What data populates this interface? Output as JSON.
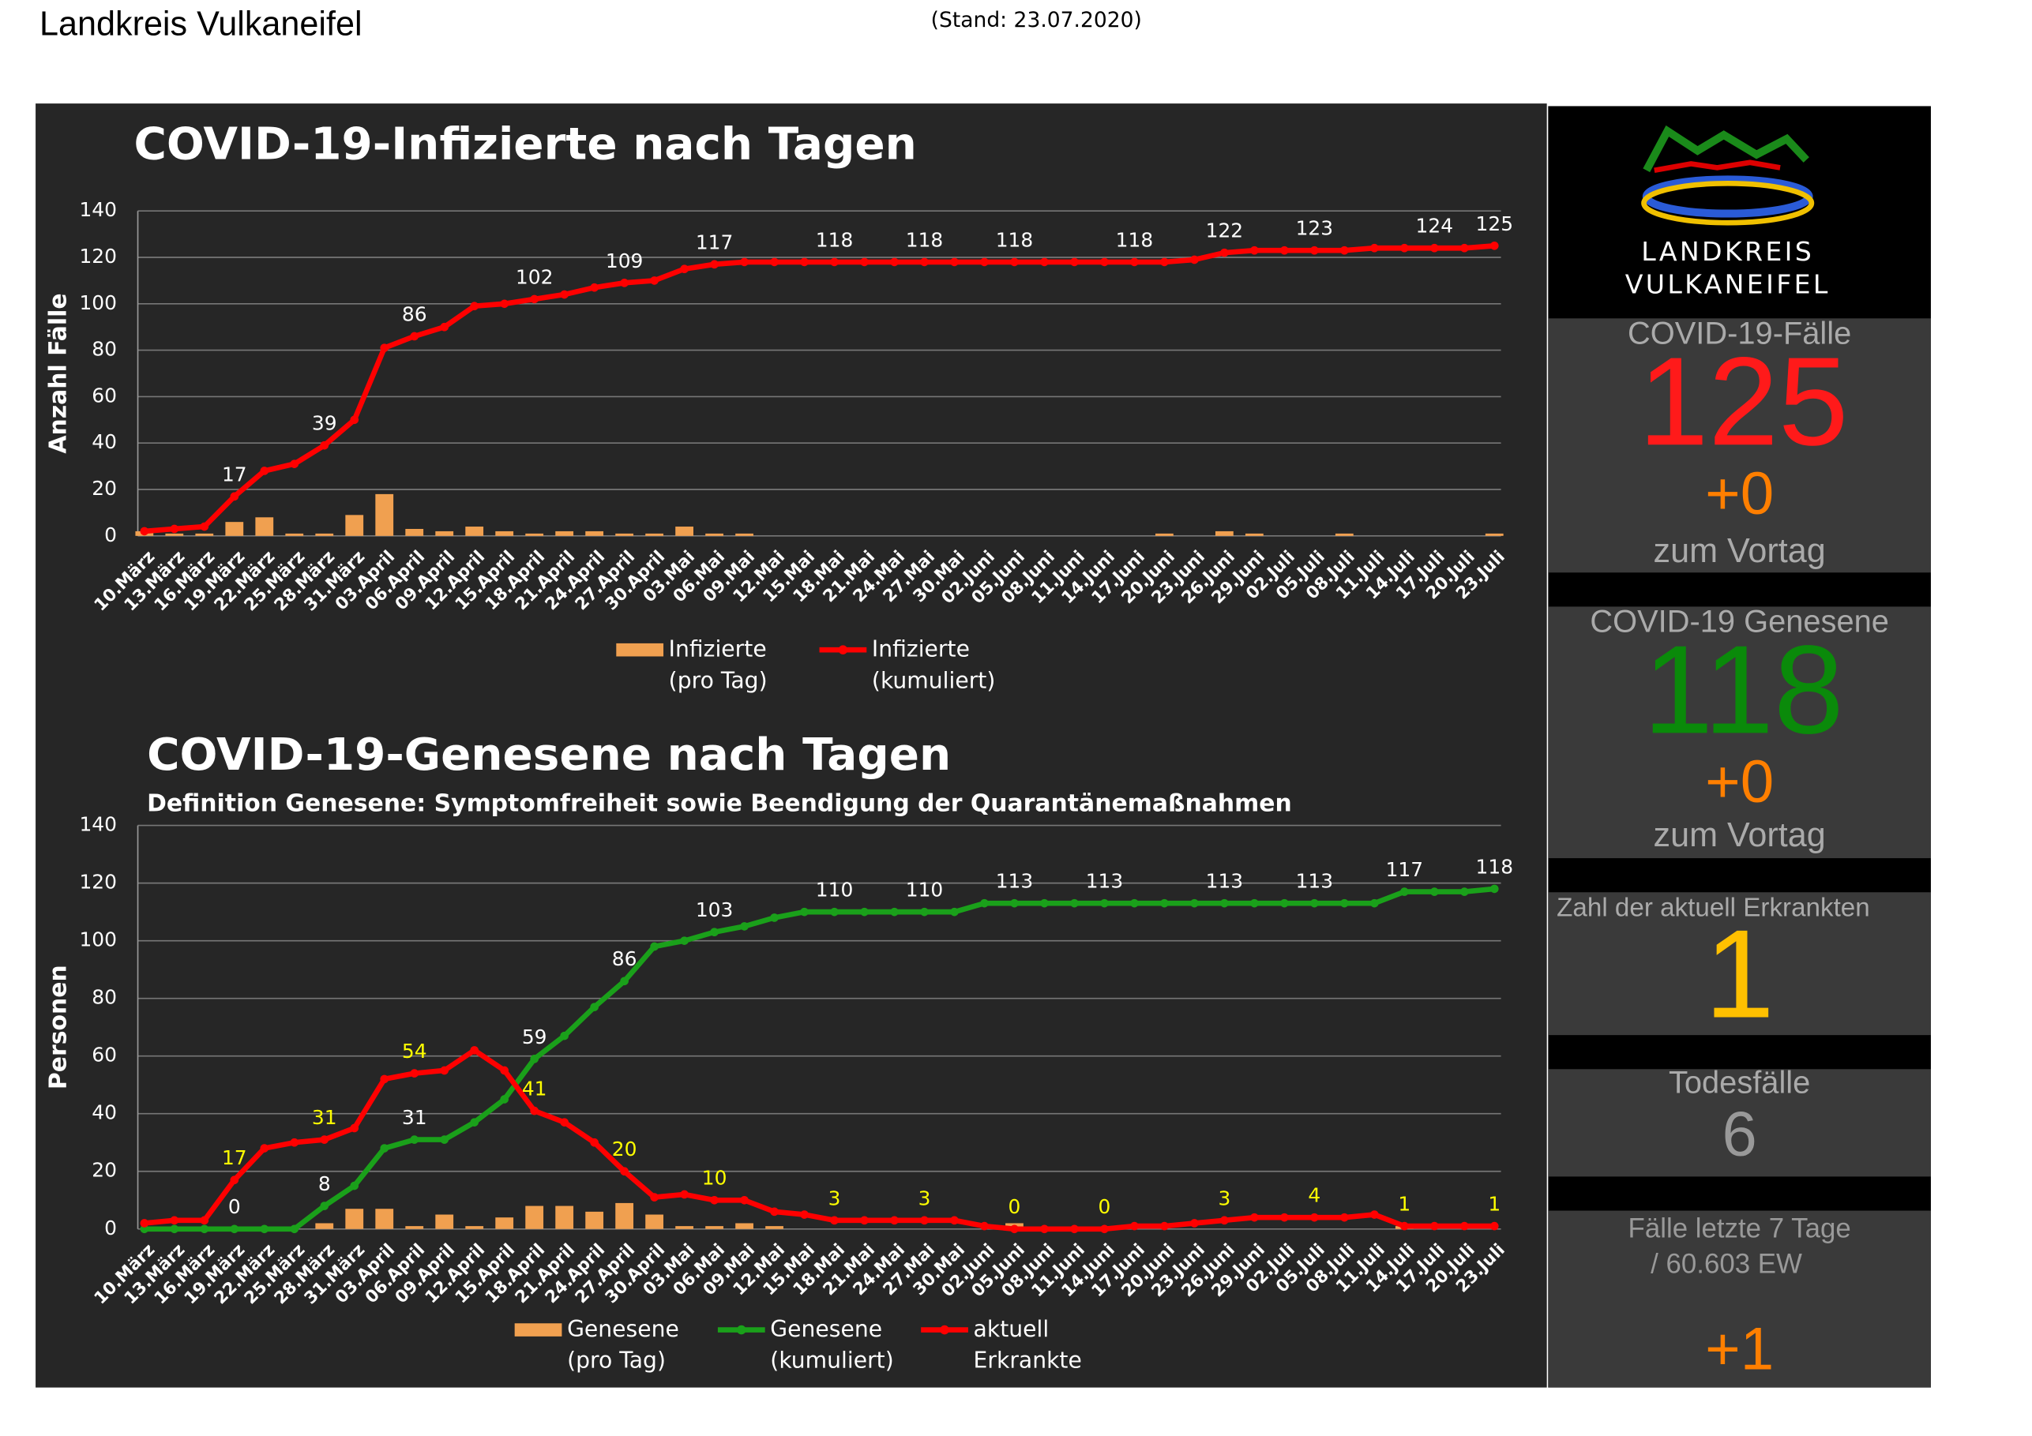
{
  "header": {
    "title": "Landkreis Vulkaneifel",
    "date": "(Stand: 23.07.2020)"
  },
  "panel": {
    "logo_lines": [
      "LANDKREIS",
      "VULKANEIFEL"
    ],
    "cases_label": "COVID-19-Fälle",
    "cases": "125",
    "cases_delta": "+0",
    "cases_delta_note": "zum Vortag",
    "recovered_label": "COVID-19 Genesene",
    "recovered": "118",
    "recovered_delta": "+0",
    "recovered_delta_note": "zum Vortag",
    "active_label": "Zahl der aktuell Erkrankten",
    "active": "1",
    "deaths_label": "Todesfälle",
    "deaths": "6",
    "week_label": "Fälle letzte 7 Tage",
    "week_population": "/  60.603 EW",
    "week": "+1"
  },
  "chart_data": [
    {
      "type": "line",
      "title": "COVID-19-Infizierte nach Tagen",
      "y_label": "Anzahl Fälle",
      "categories": [
        "10.März",
        "13.März",
        "16.März",
        "19.März",
        "22.März",
        "25.März",
        "28.März",
        "31.März",
        "03.April",
        "06.April",
        "09.April",
        "12.April",
        "15.April",
        "18.April",
        "21.April",
        "24.April",
        "27.April",
        "30.April",
        "03.Mai",
        "06.Mai",
        "09.Mai",
        "12.Mai",
        "15.Mai",
        "18.Mai",
        "21.Mai",
        "24.Mai",
        "27.Mai",
        "30.Mai",
        "02.Juni",
        "05.Juni",
        "08.Juni",
        "11.Juni",
        "14.Juni",
        "17.Juni",
        "20.Juni",
        "23.Juni",
        "26.Juni",
        "29.Juni",
        "02.Juli",
        "05.Juli",
        "08.Juli",
        "11.Juli",
        "14.Juli",
        "17.Juli",
        "20.Juli",
        "23.Juli"
      ],
      "series": [
        {
          "name": "Infizierte (pro Tag)",
          "type": "bar",
          "color": "#f0a050",
          "values": [
            2,
            1,
            1,
            6,
            8,
            1,
            1,
            9,
            18,
            3,
            2,
            4,
            2,
            1,
            2,
            2,
            1,
            1,
            4,
            1,
            1,
            0,
            0,
            0,
            0,
            0,
            0,
            0,
            0,
            0,
            0,
            0,
            0,
            0,
            1,
            0,
            2,
            1,
            0,
            0,
            1,
            0,
            0,
            0,
            0,
            1
          ]
        },
        {
          "name": "Infizierte (kumuliert)",
          "type": "line",
          "color": "#ff0000",
          "label_color": "#ffffff",
          "values": [
            2,
            3,
            4,
            17,
            28,
            31,
            39,
            50,
            81,
            86,
            90,
            99,
            100,
            102,
            104,
            107,
            109,
            110,
            115,
            117,
            118,
            118,
            118,
            118,
            118,
            118,
            118,
            118,
            118,
            118,
            118,
            118,
            118,
            118,
            118,
            119,
            122,
            123,
            123,
            123,
            123,
            124,
            124,
            124,
            124,
            125
          ],
          "value_labels": [
            null,
            null,
            null,
            "17",
            null,
            null,
            "39",
            null,
            null,
            "86",
            null,
            null,
            null,
            "102",
            null,
            null,
            "109",
            null,
            null,
            "117",
            null,
            null,
            null,
            "118",
            null,
            null,
            "118",
            null,
            null,
            "118",
            null,
            null,
            null,
            "118",
            null,
            null,
            "122",
            null,
            null,
            "123",
            null,
            null,
            null,
            "124",
            null,
            "125"
          ]
        }
      ],
      "ylim": [
        0,
        140
      ],
      "yticks": [
        0,
        20,
        40,
        60,
        80,
        100,
        120,
        140
      ],
      "grid": true
    },
    {
      "type": "line",
      "title": "COVID-19-Genesene nach Tagen",
      "subtitle": "Definition Genesene: Symptomfreiheit sowie Beendigung der Quarantänemaßnahmen",
      "y_label": "Personen",
      "categories": [
        "10.März",
        "13.März",
        "16.März",
        "19.März",
        "22.März",
        "25.März",
        "28.März",
        "31.März",
        "03.April",
        "06.April",
        "09.April",
        "12.April",
        "15.April",
        "18.April",
        "21.April",
        "24.April",
        "27.April",
        "30.April",
        "03.Mai",
        "06.Mai",
        "09.Mai",
        "12.Mai",
        "15.Mai",
        "18.Mai",
        "21.Mai",
        "24.Mai",
        "27.Mai",
        "30.Mai",
        "02.Juni",
        "05.Juni",
        "08.Juni",
        "11.Juni",
        "14.Juni",
        "17.Juni",
        "20.Juni",
        "23.Juni",
        "26.Juni",
        "29.Juni",
        "02.Juli",
        "05.Juli",
        "08.Juli",
        "11.Juli",
        "14.Juli",
        "17.Juli",
        "20.Juli",
        "23.Juli"
      ],
      "series": [
        {
          "name": "Genesene (pro Tag)",
          "type": "bar",
          "color": "#f0a050",
          "values": [
            0,
            0,
            0,
            0,
            0,
            0,
            2,
            7,
            7,
            1,
            5,
            1,
            4,
            8,
            8,
            6,
            9,
            5,
            1,
            1,
            2,
            1,
            0,
            0,
            0,
            0,
            0,
            0,
            0,
            2,
            0,
            0,
            0,
            0,
            0,
            0,
            0,
            0,
            0,
            0,
            0,
            0,
            1,
            0,
            0,
            0
          ]
        },
        {
          "name": "Genesene (kumuliert)",
          "type": "line",
          "color": "#1aa01a",
          "label_color": "#ffffff",
          "values": [
            0,
            0,
            0,
            0,
            0,
            0,
            8,
            15,
            28,
            31,
            31,
            37,
            45,
            59,
            67,
            77,
            86,
            98,
            100,
            103,
            105,
            108,
            110,
            110,
            110,
            110,
            110,
            110,
            113,
            113,
            113,
            113,
            113,
            113,
            113,
            113,
            113,
            113,
            113,
            113,
            113,
            113,
            117,
            117,
            117,
            118
          ],
          "value_labels": [
            null,
            null,
            null,
            "0",
            null,
            null,
            "8",
            null,
            null,
            "31",
            null,
            null,
            null,
            "59",
            null,
            null,
            "86",
            null,
            null,
            "103",
            null,
            null,
            null,
            "110",
            null,
            null,
            "110",
            null,
            null,
            "113",
            null,
            null,
            "113",
            null,
            null,
            null,
            "113",
            null,
            null,
            "113",
            null,
            null,
            "117",
            null,
            null,
            "118"
          ]
        },
        {
          "name": "aktuell Erkrankte",
          "type": "line",
          "color": "#ff0000",
          "label_color": "#ffff00",
          "values": [
            2,
            3,
            3,
            17,
            28,
            30,
            31,
            35,
            52,
            54,
            55,
            62,
            55,
            41,
            37,
            30,
            20,
            11,
            12,
            10,
            10,
            6,
            5,
            3,
            3,
            3,
            3,
            3,
            1,
            0,
            0,
            0,
            0,
            1,
            1,
            2,
            3,
            4,
            4,
            4,
            4,
            5,
            1,
            1,
            1,
            1
          ],
          "value_labels": [
            null,
            null,
            null,
            "17",
            null,
            null,
            "31",
            null,
            null,
            "54",
            null,
            null,
            null,
            "41",
            null,
            null,
            "20",
            null,
            null,
            "10",
            null,
            null,
            null,
            "3",
            null,
            null,
            "3",
            null,
            null,
            "0",
            null,
            null,
            "0",
            null,
            null,
            null,
            "3",
            null,
            null,
            "4",
            null,
            null,
            "1",
            null,
            null,
            "1"
          ]
        }
      ],
      "ylim": [
        0,
        140
      ],
      "yticks": [
        0,
        20,
        40,
        60,
        80,
        100,
        120,
        140
      ],
      "grid": true
    }
  ]
}
